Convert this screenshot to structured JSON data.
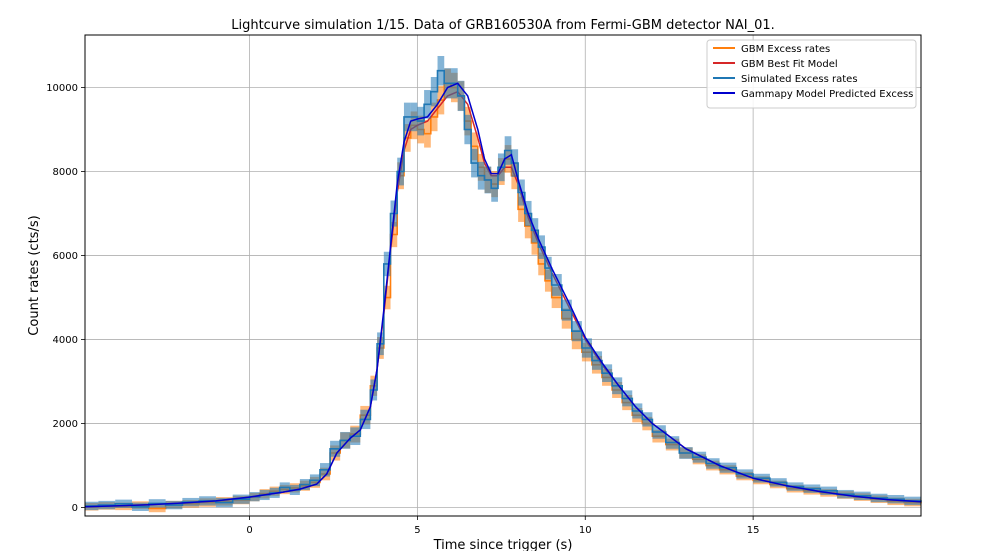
{
  "chart_data": {
    "type": "line",
    "title": "Lightcurve simulation 1/15. Data of GRB160530A from Fermi-GBM detector NAI_01.",
    "xlabel": "Time since trigger (s)",
    "ylabel": "Count rates (cts/s)",
    "xlim": [
      -4.9,
      20.0
    ],
    "ylim": [
      -200,
      11250
    ],
    "xticks": [
      0,
      5,
      10,
      15
    ],
    "yticks": [
      0,
      2000,
      4000,
      6000,
      8000,
      10000
    ],
    "grid": true,
    "legend_position": "top-right",
    "series": [
      {
        "name": "GBM Excess rates",
        "color": "#ff7f0e",
        "style": "step-with-error-band",
        "x": [
          -4.9,
          -4.5,
          -4.0,
          -3.5,
          -3.0,
          -2.5,
          -2.0,
          -1.5,
          -1.0,
          -0.5,
          0.0,
          0.3,
          0.6,
          0.9,
          1.2,
          1.5,
          1.8,
          2.1,
          2.4,
          2.7,
          3.0,
          3.3,
          3.6,
          3.8,
          4.0,
          4.2,
          4.4,
          4.6,
          4.8,
          5.0,
          5.2,
          5.4,
          5.6,
          5.8,
          6.0,
          6.2,
          6.4,
          6.6,
          6.8,
          7.0,
          7.2,
          7.4,
          7.6,
          7.8,
          8.0,
          8.2,
          8.4,
          8.6,
          8.8,
          9.0,
          9.3,
          9.6,
          9.9,
          10.2,
          10.5,
          10.8,
          11.1,
          11.4,
          11.7,
          12.0,
          12.4,
          12.8,
          13.2,
          13.6,
          14.0,
          14.5,
          15.0,
          15.5,
          16.0,
          16.5,
          17.0,
          17.5,
          18.0,
          18.5,
          19.0,
          19.5,
          20.0
        ],
        "y": [
          20,
          40,
          30,
          60,
          -20,
          70,
          90,
          120,
          150,
          180,
          250,
          330,
          390,
          430,
          470,
          520,
          600,
          800,
          1300,
          1600,
          1750,
          2200,
          2900,
          3800,
          5000,
          6500,
          7900,
          8800,
          9100,
          9000,
          8900,
          9300,
          9700,
          10100,
          10000,
          9800,
          9200,
          8600,
          8100,
          7800,
          7700,
          8000,
          8300,
          7900,
          7100,
          6700,
          6300,
          5800,
          5400,
          5000,
          4500,
          4000,
          3700,
          3400,
          3100,
          2800,
          2500,
          2200,
          2000,
          1700,
          1500,
          1300,
          1150,
          1000,
          900,
          750,
          650,
          550,
          450,
          400,
          350,
          300,
          250,
          200,
          150,
          120,
          100
        ],
        "err": [
          90,
          90,
          90,
          90,
          90,
          90,
          90,
          100,
          100,
          100,
          100,
          110,
          110,
          110,
          110,
          120,
          130,
          150,
          180,
          190,
          200,
          220,
          240,
          260,
          280,
          300,
          320,
          330,
          330,
          330,
          330,
          340,
          340,
          350,
          350,
          350,
          340,
          330,
          320,
          310,
          310,
          320,
          330,
          320,
          300,
          290,
          280,
          270,
          260,
          250,
          240,
          230,
          220,
          210,
          200,
          190,
          180,
          170,
          160,
          150,
          140,
          130,
          120,
          115,
          110,
          100,
          95,
          90,
          90,
          90,
          90,
          90,
          90,
          90,
          90,
          90,
          90
        ]
      },
      {
        "name": "GBM Best Fit Model",
        "color": "#d62728",
        "style": "line",
        "x": [
          -4.9,
          -4.0,
          -3.0,
          -2.0,
          -1.0,
          0.0,
          0.5,
          1.0,
          1.5,
          2.0,
          2.3,
          2.6,
          3.0,
          3.3,
          3.6,
          3.8,
          4.0,
          4.2,
          4.4,
          4.6,
          4.8,
          5.0,
          5.3,
          5.6,
          5.9,
          6.2,
          6.5,
          6.8,
          7.0,
          7.2,
          7.4,
          7.6,
          7.8,
          8.0,
          8.3,
          8.6,
          9.0,
          9.5,
          10.0,
          10.5,
          11.0,
          11.5,
          12.0,
          12.5,
          13.0,
          13.5,
          14.0,
          14.5,
          15.0,
          16.0,
          17.0,
          18.0,
          19.0,
          20.0
        ],
        "y": [
          20,
          40,
          70,
          110,
          160,
          250,
          310,
          370,
          440,
          560,
          800,
          1300,
          1650,
          1850,
          2400,
          3300,
          4600,
          6100,
          7500,
          8500,
          9000,
          9100,
          9200,
          9500,
          9800,
          9900,
          9600,
          8800,
          8200,
          7900,
          7900,
          8100,
          8100,
          7700,
          6900,
          6300,
          5600,
          4800,
          4000,
          3400,
          2900,
          2400,
          2000,
          1700,
          1400,
          1200,
          1000,
          850,
          700,
          520,
          380,
          270,
          190,
          140
        ]
      },
      {
        "name": "Simulated Excess rates",
        "color": "#1f77b4",
        "style": "step-with-error-band",
        "x": [
          -4.9,
          -4.5,
          -4.0,
          -3.5,
          -3.0,
          -2.5,
          -2.0,
          -1.5,
          -1.0,
          -0.5,
          0.0,
          0.3,
          0.6,
          0.9,
          1.2,
          1.5,
          1.8,
          2.1,
          2.4,
          2.7,
          3.0,
          3.3,
          3.6,
          3.8,
          4.0,
          4.2,
          4.4,
          4.6,
          4.8,
          5.0,
          5.2,
          5.4,
          5.6,
          5.8,
          6.0,
          6.2,
          6.4,
          6.6,
          6.8,
          7.0,
          7.2,
          7.4,
          7.6,
          7.8,
          8.0,
          8.2,
          8.4,
          8.6,
          8.8,
          9.0,
          9.3,
          9.6,
          9.9,
          10.2,
          10.5,
          10.8,
          11.1,
          11.4,
          11.7,
          12.0,
          12.4,
          12.8,
          13.2,
          13.6,
          14.0,
          14.5,
          15.0,
          15.5,
          16.0,
          16.5,
          17.0,
          17.5,
          18.0,
          18.5,
          19.0,
          19.5,
          20.0
        ],
        "y": [
          40,
          60,
          90,
          20,
          100,
          60,
          130,
          160,
          120,
          200,
          260,
          300,
          350,
          480,
          420,
          550,
          650,
          900,
          1400,
          1600,
          1700,
          2100,
          2800,
          3900,
          5800,
          7000,
          8000,
          9300,
          9300,
          9200,
          9600,
          9900,
          10400,
          10100,
          10100,
          9800,
          9000,
          8200,
          7900,
          7800,
          7600,
          8100,
          8500,
          8200,
          7500,
          7000,
          6600,
          6200,
          5700,
          5300,
          4700,
          4200,
          3800,
          3500,
          3200,
          2900,
          2600,
          2300,
          2100,
          1800,
          1550,
          1300,
          1200,
          1050,
          950,
          800,
          700,
          600,
          500,
          450,
          400,
          320,
          280,
          230,
          200,
          160,
          130
        ],
        "err": [
          100,
          100,
          100,
          100,
          100,
          100,
          100,
          110,
          110,
          110,
          110,
          120,
          120,
          120,
          120,
          130,
          140,
          160,
          190,
          200,
          210,
          230,
          250,
          270,
          290,
          310,
          330,
          340,
          340,
          340,
          340,
          350,
          350,
          360,
          360,
          360,
          350,
          340,
          330,
          320,
          320,
          330,
          340,
          330,
          310,
          300,
          290,
          280,
          270,
          260,
          250,
          240,
          230,
          220,
          210,
          200,
          190,
          180,
          170,
          160,
          150,
          140,
          130,
          125,
          120,
          110,
          105,
          100,
          100,
          100,
          100,
          100,
          100,
          100,
          100,
          100,
          100
        ]
      },
      {
        "name": "Gammapy Model Predicted Excess",
        "color": "#0000cd",
        "style": "line",
        "x": [
          -4.9,
          -4.0,
          -3.0,
          -2.0,
          -1.0,
          0.0,
          0.5,
          1.0,
          1.5,
          2.0,
          2.3,
          2.6,
          3.0,
          3.3,
          3.6,
          3.8,
          4.0,
          4.2,
          4.4,
          4.6,
          4.8,
          5.0,
          5.3,
          5.6,
          5.9,
          6.2,
          6.5,
          6.8,
          7.0,
          7.2,
          7.4,
          7.6,
          7.8,
          8.0,
          8.3,
          8.6,
          9.0,
          9.5,
          10.0,
          10.5,
          11.0,
          11.5,
          12.0,
          12.5,
          13.0,
          13.5,
          14.0,
          14.5,
          15.0,
          16.0,
          17.0,
          18.0,
          19.0,
          20.0
        ],
        "y": [
          20,
          40,
          70,
          110,
          160,
          250,
          310,
          370,
          440,
          560,
          800,
          1300,
          1650,
          1850,
          2400,
          3300,
          4700,
          6200,
          7700,
          8700,
          9200,
          9250,
          9300,
          9600,
          10000,
          10100,
          9800,
          9000,
          8300,
          7950,
          7950,
          8300,
          8400,
          7800,
          7000,
          6400,
          5700,
          4900,
          4050,
          3450,
          2900,
          2400,
          2000,
          1700,
          1400,
          1200,
          1000,
          850,
          700,
          520,
          380,
          270,
          190,
          140
        ]
      }
    ]
  }
}
